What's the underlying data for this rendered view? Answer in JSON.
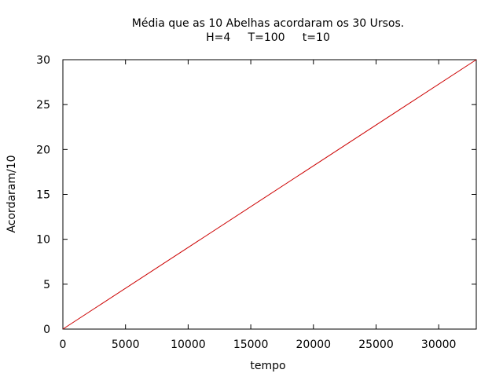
{
  "chart_data": {
    "type": "line",
    "title": "Média que as 10 Abelhas acordaram os 30 Ursos.",
    "subtitle": "H=4     T=100     t=10",
    "xlabel": "tempo",
    "ylabel": "Acordaram/10",
    "xlim": [
      0,
      33000
    ],
    "ylim": [
      0,
      30
    ],
    "x_ticks": [
      0,
      5000,
      10000,
      15000,
      20000,
      25000,
      30000
    ],
    "y_ticks": [
      0,
      5,
      10,
      15,
      20,
      25,
      30
    ],
    "grid": false,
    "legend": "none",
    "series": [
      {
        "color": "#cc0000",
        "x": [
          0,
          33000
        ],
        "y": [
          0,
          30
        ]
      }
    ]
  }
}
